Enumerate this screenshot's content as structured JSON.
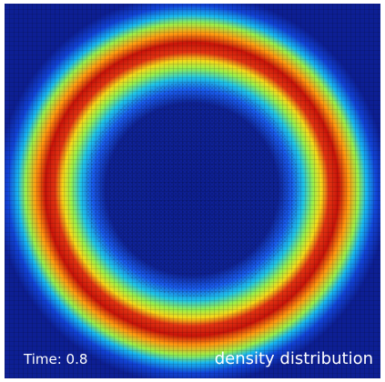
{
  "time_label": "Time: 0.8",
  "caption": "density distribution"
}
